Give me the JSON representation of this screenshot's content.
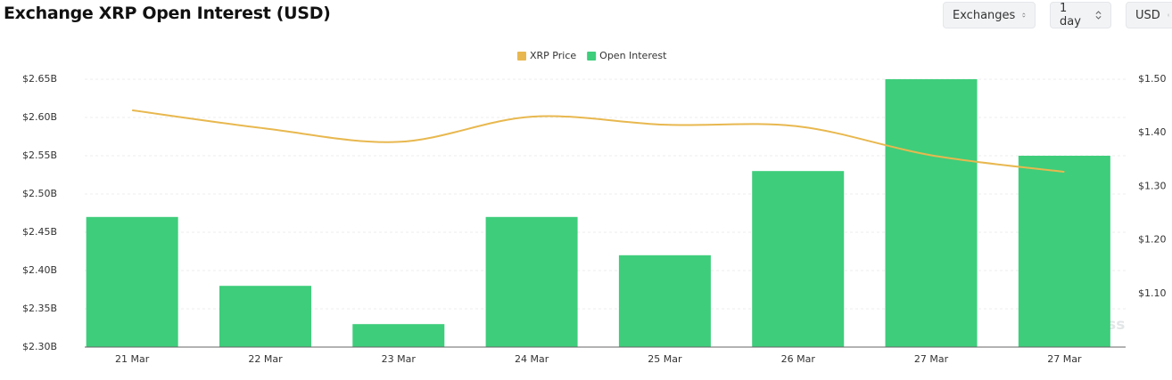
{
  "header": {
    "title": "Exchange XRP Open Interest (USD)",
    "controls": [
      "Exchanges",
      "1 day",
      "USD"
    ]
  },
  "chart_data": {
    "type": "bar-line",
    "categories": [
      "21 Mar",
      "22 Mar",
      "23 Mar",
      "24 Mar",
      "25 Mar",
      "26 Mar",
      "27 Mar",
      "27 Mar"
    ],
    "series": [
      {
        "name": "XRP Price",
        "color": "#e8b84f",
        "type": "line",
        "axis": "y2",
        "values": [
          1.442,
          1.408,
          1.383,
          1.43,
          1.415,
          1.412,
          1.358,
          1.327
        ]
      },
      {
        "name": "Open Interest",
        "color": "#3ecd7b",
        "type": "bar",
        "values": [
          2.47,
          2.38,
          2.33,
          2.47,
          2.42,
          2.53,
          2.65,
          2.55
        ]
      }
    ],
    "ylim": [
      2.3,
      2.65
    ],
    "yticks": [
      {
        "value": 2.3,
        "label": "$2.30B"
      },
      {
        "value": 2.35,
        "label": "$2.35B"
      },
      {
        "value": 2.4,
        "label": "$2.40B"
      },
      {
        "value": 2.45,
        "label": "$2.45B"
      },
      {
        "value": 2.5,
        "label": "$2.50B"
      },
      {
        "value": 2.55,
        "label": "$2.55B"
      },
      {
        "value": 2.6,
        "label": "$2.60B"
      },
      {
        "value": 2.65,
        "label": "$2.65B"
      }
    ],
    "y2lim": [
      1.0,
      1.5
    ],
    "y2ticks": [
      {
        "value": 1.1,
        "label": "$1.10"
      },
      {
        "value": 1.2,
        "label": "$1.20"
      },
      {
        "value": 1.3,
        "label": "$1.30"
      },
      {
        "value": 1.4,
        "label": "$1.40"
      },
      {
        "value": 1.5,
        "label": "$1.50"
      }
    ],
    "grid": true,
    "legend": "top",
    "watermark": "coinglass"
  }
}
